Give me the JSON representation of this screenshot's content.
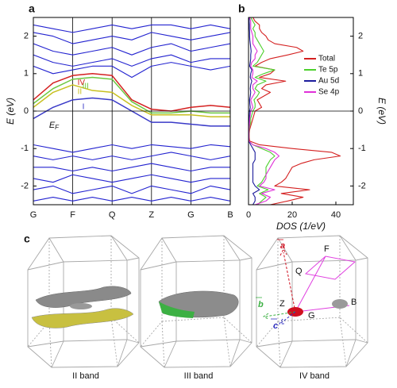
{
  "chart_data": [
    {
      "type": "line",
      "panel": "a",
      "ylabel": "E (eV)",
      "annotation": "E",
      "annotation_sub": "F",
      "x": [
        0,
        0.5,
        1,
        1.5,
        2,
        2.5,
        3,
        3.5,
        4,
        4.5,
        5
      ],
      "xlim": [
        0,
        5
      ],
      "xticks": [
        {
          "value": 0,
          "label": "G"
        },
        {
          "value": 1,
          "label": "F"
        },
        {
          "value": 2,
          "label": "Q"
        },
        {
          "value": 3,
          "label": "Z"
        },
        {
          "value": 4,
          "label": "G"
        },
        {
          "value": 5,
          "label": "B"
        }
      ],
      "ylim": [
        -2.5,
        2.5
      ],
      "yticks": [
        -2,
        -1,
        0,
        1,
        2
      ],
      "hlines": [
        0
      ],
      "series": [
        {
          "color": "#2323d0",
          "values": [
            2.3,
            2.2,
            2.1,
            2.2,
            2.3,
            2.2,
            2.3,
            2.3,
            2.2,
            2.3,
            2.2
          ]
        },
        {
          "color": "#2323d0",
          "values": [
            2.1,
            2.0,
            1.8,
            1.9,
            2.0,
            1.9,
            2.1,
            2.0,
            1.9,
            2.0,
            2.1
          ]
        },
        {
          "color": "#2323d0",
          "values": [
            1.8,
            1.6,
            1.5,
            1.6,
            1.7,
            1.5,
            1.7,
            1.8,
            1.6,
            1.7,
            1.8
          ]
        },
        {
          "color": "#2323d0",
          "values": [
            1.5,
            1.3,
            1.2,
            1.3,
            1.4,
            1.2,
            1.4,
            1.5,
            1.3,
            1.4,
            1.4
          ]
        },
        {
          "color": "#2323d0",
          "values": [
            1.2,
            1.0,
            1.1,
            1.2,
            1.2,
            0.9,
            1.2,
            1.3,
            1.2,
            1.1,
            1.2
          ]
        },
        {
          "color": "#2323d0",
          "values": [
            -0.9,
            -1.0,
            -1.1,
            -1.0,
            -0.9,
            -1.0,
            -0.9,
            -0.95,
            -1.0,
            -0.9,
            -0.95
          ]
        },
        {
          "color": "#2323d0",
          "values": [
            -1.2,
            -1.3,
            -1.2,
            -1.3,
            -1.2,
            -1.3,
            -1.2,
            -1.1,
            -1.2,
            -1.3,
            -1.2
          ]
        },
        {
          "color": "#2323d0",
          "values": [
            -1.5,
            -1.5,
            -1.6,
            -1.5,
            -1.6,
            -1.5,
            -1.4,
            -1.5,
            -1.6,
            -1.5,
            -1.5
          ]
        },
        {
          "color": "#2323d0",
          "values": [
            -1.8,
            -1.9,
            -1.7,
            -1.8,
            -1.9,
            -1.8,
            -1.7,
            -1.8,
            -1.9,
            -1.8,
            -1.8
          ]
        },
        {
          "color": "#2323d0",
          "values": [
            -2.1,
            -2.0,
            -2.2,
            -2.1,
            -2.0,
            -2.2,
            -2.0,
            -2.1,
            -2.2,
            -2.0,
            -2.1
          ]
        },
        {
          "color": "#2323d0",
          "values": [
            -2.4,
            -2.3,
            -2.4,
            -2.3,
            -2.4,
            -2.3,
            -2.4,
            -2.3,
            -2.4,
            -2.3,
            -2.4
          ]
        },
        {
          "name": "I",
          "color": "#3a3ac8",
          "values": [
            -0.2,
            0.1,
            0.3,
            0.35,
            0.3,
            0.0,
            -0.3,
            -0.3,
            -0.35,
            -0.4,
            -0.4
          ]
        },
        {
          "name": "II",
          "color": "#c8c020",
          "values": [
            0.1,
            0.5,
            0.7,
            0.55,
            0.5,
            0.15,
            -0.1,
            -0.1,
            -0.1,
            -0.15,
            -0.15
          ]
        },
        {
          "name": "III",
          "color": "#6cc840",
          "values": [
            0.2,
            0.6,
            0.85,
            0.9,
            0.85,
            0.25,
            -0.05,
            -0.05,
            0.0,
            -0.05,
            -0.05
          ]
        },
        {
          "name": "IV",
          "color": "#d42020",
          "values": [
            0.3,
            0.75,
            0.95,
            1.0,
            0.95,
            0.3,
            0.05,
            0.0,
            0.1,
            0.15,
            0.1
          ]
        }
      ]
    },
    {
      "type": "line",
      "orientation": "horizontal",
      "panel": "b",
      "xlabel": "DOS (1/eV)",
      "ylabel": "E (eV)",
      "y": [
        -2.5,
        -2.4,
        -2.3,
        -2.2,
        -2.1,
        -2.0,
        -1.9,
        -1.8,
        -1.7,
        -1.6,
        -1.5,
        -1.4,
        -1.3,
        -1.2,
        -1.1,
        -1.0,
        -0.9,
        -0.8,
        -0.7,
        -0.6,
        -0.5,
        -0.4,
        -0.3,
        -0.2,
        -0.1,
        0.0,
        0.1,
        0.2,
        0.3,
        0.4,
        0.5,
        0.6,
        0.7,
        0.8,
        0.9,
        1.0,
        1.1,
        1.2,
        1.3,
        1.4,
        1.5,
        1.6,
        1.7,
        1.8,
        1.9,
        2.0,
        2.1,
        2.2,
        2.3,
        2.4,
        2.5
      ],
      "xlim": [
        0,
        48
      ],
      "xticks": [
        0,
        20,
        40
      ],
      "ylim": [
        -2.5,
        2.5
      ],
      "yticks": [
        -2,
        -1,
        0,
        1,
        2
      ],
      "yaxis_side": "right",
      "legend": "upper right",
      "hlines": [
        0
      ],
      "series": [
        {
          "name": "Total",
          "color": "#d42020",
          "values": [
            10,
            18,
            25,
            15,
            28,
            12,
            15,
            17,
            18,
            19,
            20,
            24,
            30,
            42,
            38,
            20,
            5,
            0.5,
            0.3,
            0.3,
            0.5,
            1,
            1.5,
            2,
            2.5,
            3,
            6,
            5,
            4,
            7,
            10,
            6,
            8,
            17,
            5,
            10,
            12,
            3,
            6,
            10,
            18,
            25,
            22,
            12,
            9,
            8,
            6,
            5,
            5,
            3,
            2
          ]
        },
        {
          "name": "Te 5p",
          "color": "#4cd02c",
          "values": [
            4,
            6,
            8,
            5,
            9,
            4,
            6,
            7,
            8,
            8,
            8,
            9,
            10,
            12,
            10,
            6,
            2,
            0.2,
            0.2,
            0.2,
            0.3,
            0.6,
            1,
            1,
            1.5,
            2,
            3,
            3,
            2.5,
            4,
            5,
            3,
            4,
            8,
            3,
            7,
            12,
            2,
            4,
            5,
            6,
            7,
            6,
            5,
            4,
            3,
            3,
            2,
            3,
            2,
            1
          ]
        },
        {
          "name": "Au 5d",
          "color": "#1c1c9c",
          "values": [
            2,
            3,
            3,
            2,
            5,
            3,
            2,
            2,
            2,
            2,
            2,
            2,
            3,
            3,
            3,
            2,
            1,
            0.1,
            0.1,
            0.1,
            0.1,
            0.2,
            0.3,
            0.3,
            0.4,
            0.5,
            0.8,
            0.6,
            0.5,
            0.8,
            1,
            0.8,
            1,
            1.5,
            0.8,
            1,
            1.5,
            0.5,
            0.8,
            1,
            1,
            1.2,
            1,
            0.8,
            0.6,
            0.5,
            0.5,
            0.4,
            0.4,
            0.3,
            0.3
          ]
        },
        {
          "name": "Se 4p",
          "color": "#e030d8",
          "values": [
            3,
            8,
            10,
            6,
            12,
            5,
            7,
            8,
            8,
            9,
            10,
            11,
            12,
            14,
            12,
            8,
            2,
            0.2,
            0.2,
            0.2,
            0.2,
            0.4,
            0.5,
            0.6,
            0.8,
            1,
            2,
            1.5,
            1,
            2,
            3,
            2,
            2,
            4,
            1.5,
            2,
            2,
            1,
            1.5,
            3,
            3,
            4,
            3,
            2,
            2,
            2,
            1.5,
            1,
            1,
            1,
            0.5
          ]
        }
      ]
    }
  ],
  "panel_c": {
    "panel": "c",
    "captions": [
      "II band",
      "III band",
      "IV band"
    ],
    "labels": {
      "a": "a",
      "F": "F",
      "Q": "Q",
      "B": "B",
      "b": "b",
      "Z": "Z",
      "G": "G",
      "c": "c"
    }
  }
}
